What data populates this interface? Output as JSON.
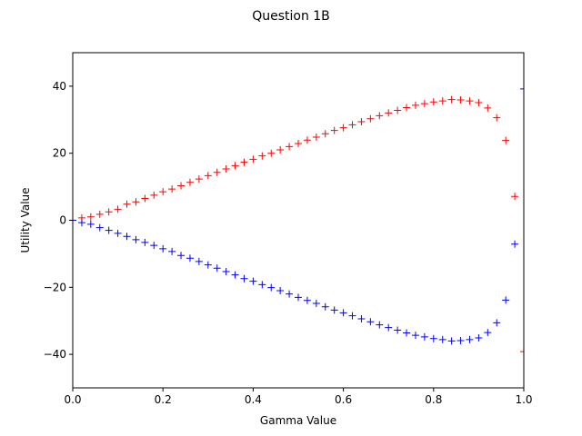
{
  "chart_data": {
    "type": "scatter",
    "title": "Question 1B",
    "xlabel": "Gamma Value",
    "ylabel": "Utility Value",
    "xlim": [
      0,
      1
    ],
    "ylim": [
      -50,
      50
    ],
    "xticks": [
      0.0,
      0.2,
      0.4,
      0.6,
      0.8,
      1.0
    ],
    "xtick_labels": [
      "0.0",
      "0.2",
      "0.4",
      "0.6",
      "0.8",
      "1.0"
    ],
    "yticks": [
      -40,
      -20,
      0,
      20,
      40
    ],
    "ytick_labels": [
      "−40",
      "−20",
      "0",
      "20",
      "40"
    ],
    "grid": false,
    "marker": "+",
    "x": [
      0.0,
      0.02,
      0.04,
      0.06,
      0.08,
      0.1,
      0.12,
      0.14,
      0.16,
      0.18,
      0.2,
      0.22,
      0.24,
      0.26,
      0.28,
      0.3,
      0.32,
      0.34,
      0.36,
      0.38,
      0.4,
      0.42,
      0.44,
      0.46,
      0.48,
      0.5,
      0.52,
      0.54,
      0.56,
      0.58,
      0.6,
      0.62,
      0.64,
      0.66,
      0.68,
      0.7,
      0.72,
      0.74,
      0.76,
      0.78,
      0.8,
      0.82,
      0.84,
      0.86,
      0.88,
      0.9,
      0.92,
      0.94,
      0.96,
      0.98,
      1.0
    ],
    "series": [
      {
        "color": "#ff0000",
        "values": [
          0.0,
          0.7,
          1.0,
          1.8,
          2.5,
          3.3,
          4.8,
          5.5,
          6.5,
          7.5,
          8.5,
          9.3,
          10.3,
          11.3,
          12.3,
          13.3,
          14.3,
          15.3,
          16.3,
          17.3,
          18.2,
          19.2,
          20.0,
          21.0,
          22.0,
          22.9,
          23.9,
          24.8,
          25.8,
          26.8,
          27.6,
          28.5,
          29.4,
          30.3,
          31.2,
          32.0,
          32.8,
          33.6,
          34.3,
          34.8,
          35.3,
          35.6,
          36.0,
          35.9,
          35.6,
          35.1,
          33.5,
          30.6,
          23.8,
          7.1,
          -39.2
        ]
      },
      {
        "color": "#0000ff",
        "values": [
          0.0,
          -0.7,
          -1.2,
          -2.2,
          -3.0,
          -3.9,
          -4.8,
          -5.8,
          -6.6,
          -7.5,
          -8.5,
          -9.3,
          -10.5,
          -11.3,
          -12.3,
          -13.3,
          -14.3,
          -15.3,
          -16.3,
          -17.4,
          -18.2,
          -19.2,
          -20.1,
          -21.0,
          -22.0,
          -23.0,
          -23.9,
          -24.8,
          -25.8,
          -26.8,
          -27.6,
          -28.5,
          -29.4,
          -30.3,
          -31.2,
          -32.0,
          -32.8,
          -33.6,
          -34.3,
          -34.8,
          -35.3,
          -35.6,
          -36.0,
          -35.9,
          -35.6,
          -35.1,
          -33.5,
          -30.6,
          -23.8,
          -7.1,
          39.2
        ]
      }
    ]
  }
}
